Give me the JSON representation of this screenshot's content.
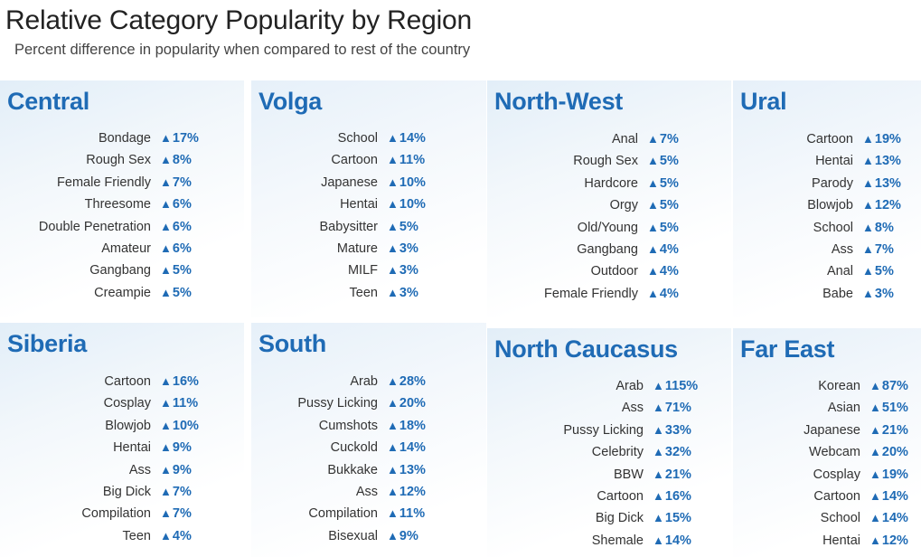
{
  "chart_data": {
    "type": "table",
    "title": "Relative Category Popularity by Region",
    "subtitle": "Percent difference in popularity when compared to rest of the country",
    "up_symbol": "▲",
    "accent_color": "#1f6bb5",
    "regions": [
      {
        "name": "Central",
        "rows": [
          {
            "category": "Bondage",
            "value": "17%"
          },
          {
            "category": "Rough Sex",
            "value": "8%"
          },
          {
            "category": "Female Friendly",
            "value": "7%"
          },
          {
            "category": "Threesome",
            "value": "6%"
          },
          {
            "category": "Double Penetration",
            "value": "6%"
          },
          {
            "category": "Amateur",
            "value": "6%"
          },
          {
            "category": "Gangbang",
            "value": "5%"
          },
          {
            "category": "Creampie",
            "value": "5%"
          }
        ]
      },
      {
        "name": "Volga",
        "rows": [
          {
            "category": "School",
            "value": "14%"
          },
          {
            "category": "Cartoon",
            "value": "11%"
          },
          {
            "category": "Japanese",
            "value": "10%"
          },
          {
            "category": "Hentai",
            "value": "10%"
          },
          {
            "category": "Babysitter",
            "value": "5%"
          },
          {
            "category": "Mature",
            "value": "3%"
          },
          {
            "category": "MILF",
            "value": "3%"
          },
          {
            "category": "Teen",
            "value": "3%"
          }
        ]
      },
      {
        "name": "North-West",
        "rows": [
          {
            "category": "Anal",
            "value": "7%"
          },
          {
            "category": "Rough Sex",
            "value": "5%"
          },
          {
            "category": "Hardcore",
            "value": "5%"
          },
          {
            "category": "Orgy",
            "value": "5%"
          },
          {
            "category": "Old/Young",
            "value": "5%"
          },
          {
            "category": "Gangbang",
            "value": "4%"
          },
          {
            "category": "Outdoor",
            "value": "4%"
          },
          {
            "category": "Female Friendly",
            "value": "4%"
          }
        ]
      },
      {
        "name": "Ural",
        "rows": [
          {
            "category": "Cartoon",
            "value": "19%"
          },
          {
            "category": "Hentai",
            "value": "13%"
          },
          {
            "category": "Parody",
            "value": "13%"
          },
          {
            "category": "Blowjob",
            "value": "12%"
          },
          {
            "category": "School",
            "value": "8%"
          },
          {
            "category": "Ass",
            "value": "7%"
          },
          {
            "category": "Anal",
            "value": "5%"
          },
          {
            "category": "Babe",
            "value": "3%"
          }
        ]
      },
      {
        "name": "Siberia",
        "rows": [
          {
            "category": "Cartoon",
            "value": "16%"
          },
          {
            "category": "Cosplay",
            "value": "11%"
          },
          {
            "category": "Blowjob",
            "value": "10%"
          },
          {
            "category": "Hentai",
            "value": "9%"
          },
          {
            "category": "Ass",
            "value": "9%"
          },
          {
            "category": "Big Dick",
            "value": "7%"
          },
          {
            "category": "Compilation",
            "value": "7%"
          },
          {
            "category": "Teen",
            "value": "4%"
          }
        ]
      },
      {
        "name": "South",
        "rows": [
          {
            "category": "Arab",
            "value": "28%"
          },
          {
            "category": "Pussy Licking",
            "value": "20%"
          },
          {
            "category": "Cumshots",
            "value": "18%"
          },
          {
            "category": "Cuckold",
            "value": "14%"
          },
          {
            "category": "Bukkake",
            "value": "13%"
          },
          {
            "category": "Ass",
            "value": "12%"
          },
          {
            "category": "Compilation",
            "value": "11%"
          },
          {
            "category": "Bisexual",
            "value": "9%"
          }
        ]
      },
      {
        "name": "North Caucasus",
        "rows": [
          {
            "category": "Arab",
            "value": "115%"
          },
          {
            "category": "Ass",
            "value": "71%"
          },
          {
            "category": "Pussy Licking",
            "value": "33%"
          },
          {
            "category": "Celebrity",
            "value": "32%"
          },
          {
            "category": "BBW",
            "value": "21%"
          },
          {
            "category": "Cartoon",
            "value": "16%"
          },
          {
            "category": "Big Dick",
            "value": "15%"
          },
          {
            "category": "Shemale",
            "value": "14%"
          }
        ]
      },
      {
        "name": "Far East",
        "rows": [
          {
            "category": "Korean",
            "value": "87%"
          },
          {
            "category": "Asian",
            "value": "51%"
          },
          {
            "category": "Japanese",
            "value": "21%"
          },
          {
            "category": "Webcam",
            "value": "20%"
          },
          {
            "category": "Cosplay",
            "value": "19%"
          },
          {
            "category": "Cartoon",
            "value": "14%"
          },
          {
            "category": "School",
            "value": "14%"
          },
          {
            "category": "Hentai",
            "value": "12%"
          }
        ]
      }
    ]
  }
}
